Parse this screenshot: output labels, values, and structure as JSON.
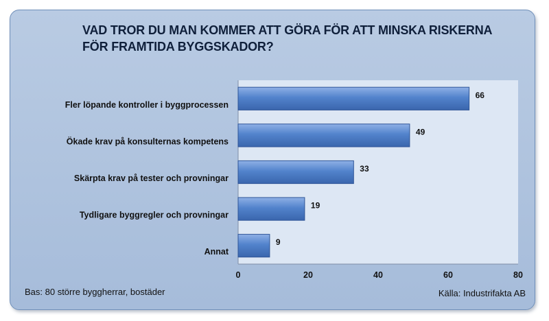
{
  "chart_data": {
    "type": "bar",
    "orientation": "horizontal",
    "title": "VAD TROR DU MAN KOMMER ATT GÖRA FÖR ATT MINSKA RISKERNA FÖR FRAMTIDA BYGGSKADOR?",
    "categories": [
      "Fler löpande kontroller i byggprocessen",
      "Ökade krav på konsulternas kompetens",
      "Skärpta krav på tester och provningar",
      "Tydligare byggregler och provningar",
      "Annat"
    ],
    "values": [
      66,
      49,
      33,
      19,
      9
    ],
    "xlim": [
      0,
      80
    ],
    "xticks": [
      "0",
      "20",
      "40",
      "60",
      "80"
    ],
    "grid": false,
    "legend": "none",
    "bar_color": "#4f7fc8"
  },
  "footer": {
    "base": "Bas: 80 större byggherrar, bostäder",
    "source": "Källa: Industrifakta AB"
  }
}
